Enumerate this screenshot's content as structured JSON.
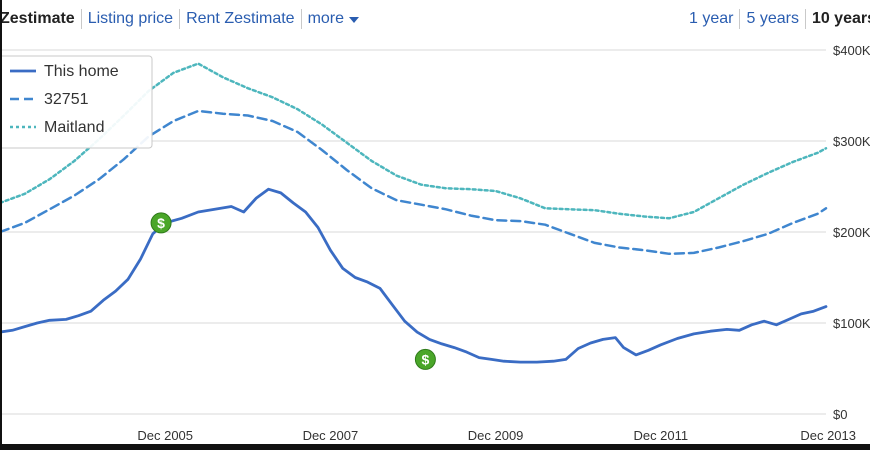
{
  "toolbar": {
    "tabs": [
      "Zestimate",
      "Listing price",
      "Rent Zestimate"
    ],
    "more_label": "more",
    "ranges": [
      "1 year",
      "5 years",
      "10 years"
    ]
  },
  "colors": {
    "link": "#2a5db0",
    "this_home": "#3a6cc4",
    "zip": "#3f86cf",
    "city": "#4db6bd",
    "marker": "#4aa629",
    "grid": "#d9d9d9"
  },
  "chart_data": {
    "type": "line",
    "x_ticks": [
      "Dec 2005",
      "Dec 2007",
      "Dec 2009",
      "Dec 2011",
      "Dec 2013"
    ],
    "y_ticks": [
      "$0",
      "$100K",
      "$200K",
      "$300K",
      "$400K"
    ],
    "ylim": [
      0,
      400000
    ],
    "xlim": [
      2004.0,
      2014.0
    ],
    "grid": true,
    "legend_position": "top-left",
    "series": [
      {
        "name": "This home",
        "style": "solid",
        "points": [
          [
            2004.0,
            90000
          ],
          [
            2004.15,
            92000
          ],
          [
            2004.3,
            96000
          ],
          [
            2004.45,
            100000
          ],
          [
            2004.6,
            103000
          ],
          [
            2004.8,
            104000
          ],
          [
            2004.95,
            108000
          ],
          [
            2005.1,
            113000
          ],
          [
            2005.25,
            125000
          ],
          [
            2005.4,
            135000
          ],
          [
            2005.55,
            148000
          ],
          [
            2005.7,
            170000
          ],
          [
            2005.85,
            198000
          ],
          [
            2006.0,
            210000
          ],
          [
            2006.2,
            215000
          ],
          [
            2006.4,
            222000
          ],
          [
            2006.6,
            225000
          ],
          [
            2006.8,
            228000
          ],
          [
            2006.95,
            222000
          ],
          [
            2007.1,
            237000
          ],
          [
            2007.25,
            247000
          ],
          [
            2007.4,
            243000
          ],
          [
            2007.55,
            232000
          ],
          [
            2007.7,
            222000
          ],
          [
            2007.85,
            205000
          ],
          [
            2008.0,
            180000
          ],
          [
            2008.15,
            160000
          ],
          [
            2008.3,
            150000
          ],
          [
            2008.45,
            145000
          ],
          [
            2008.6,
            138000
          ],
          [
            2008.75,
            120000
          ],
          [
            2008.9,
            102000
          ],
          [
            2009.05,
            90000
          ],
          [
            2009.2,
            82000
          ],
          [
            2009.35,
            77000
          ],
          [
            2009.5,
            73000
          ],
          [
            2009.65,
            68000
          ],
          [
            2009.8,
            62000
          ],
          [
            2009.95,
            60000
          ],
          [
            2010.1,
            58000
          ],
          [
            2010.3,
            57000
          ],
          [
            2010.5,
            57000
          ],
          [
            2010.7,
            58000
          ],
          [
            2010.85,
            60000
          ],
          [
            2011.0,
            72000
          ],
          [
            2011.15,
            78000
          ],
          [
            2011.3,
            82000
          ],
          [
            2011.45,
            84000
          ],
          [
            2011.55,
            73000
          ],
          [
            2011.7,
            65000
          ],
          [
            2011.85,
            70000
          ],
          [
            2012.0,
            76000
          ],
          [
            2012.2,
            83000
          ],
          [
            2012.4,
            88000
          ],
          [
            2012.6,
            91000
          ],
          [
            2012.8,
            93000
          ],
          [
            2012.95,
            92000
          ],
          [
            2013.1,
            98000
          ],
          [
            2013.25,
            102000
          ],
          [
            2013.4,
            98000
          ],
          [
            2013.55,
            104000
          ],
          [
            2013.7,
            110000
          ],
          [
            2013.85,
            113000
          ],
          [
            2014.0,
            118000
          ]
        ]
      },
      {
        "name": "32751",
        "style": "dashed",
        "points": [
          [
            2004.0,
            200000
          ],
          [
            2004.3,
            210000
          ],
          [
            2004.6,
            225000
          ],
          [
            2004.9,
            240000
          ],
          [
            2005.2,
            258000
          ],
          [
            2005.5,
            280000
          ],
          [
            2005.8,
            305000
          ],
          [
            2006.1,
            322000
          ],
          [
            2006.4,
            333000
          ],
          [
            2006.7,
            330000
          ],
          [
            2007.0,
            328000
          ],
          [
            2007.3,
            322000
          ],
          [
            2007.6,
            310000
          ],
          [
            2007.9,
            290000
          ],
          [
            2008.2,
            268000
          ],
          [
            2008.5,
            248000
          ],
          [
            2008.8,
            235000
          ],
          [
            2009.1,
            230000
          ],
          [
            2009.4,
            225000
          ],
          [
            2009.7,
            218000
          ],
          [
            2010.0,
            213000
          ],
          [
            2010.3,
            212000
          ],
          [
            2010.6,
            208000
          ],
          [
            2010.9,
            198000
          ],
          [
            2011.2,
            188000
          ],
          [
            2011.5,
            183000
          ],
          [
            2011.8,
            180000
          ],
          [
            2012.1,
            176000
          ],
          [
            2012.4,
            177000
          ],
          [
            2012.7,
            183000
          ],
          [
            2013.0,
            190000
          ],
          [
            2013.3,
            198000
          ],
          [
            2013.6,
            210000
          ],
          [
            2013.9,
            220000
          ],
          [
            2014.0,
            226000
          ]
        ]
      },
      {
        "name": "Maitland",
        "style": "dotted",
        "points": [
          [
            2004.0,
            232000
          ],
          [
            2004.3,
            242000
          ],
          [
            2004.6,
            258000
          ],
          [
            2004.9,
            278000
          ],
          [
            2005.2,
            302000
          ],
          [
            2005.5,
            328000
          ],
          [
            2005.8,
            355000
          ],
          [
            2006.1,
            375000
          ],
          [
            2006.4,
            385000
          ],
          [
            2006.7,
            370000
          ],
          [
            2007.0,
            358000
          ],
          [
            2007.3,
            348000
          ],
          [
            2007.6,
            335000
          ],
          [
            2007.9,
            318000
          ],
          [
            2008.2,
            298000
          ],
          [
            2008.5,
            278000
          ],
          [
            2008.8,
            262000
          ],
          [
            2009.1,
            252000
          ],
          [
            2009.4,
            248000
          ],
          [
            2009.7,
            247000
          ],
          [
            2010.0,
            245000
          ],
          [
            2010.3,
            237000
          ],
          [
            2010.6,
            226000
          ],
          [
            2010.9,
            225000
          ],
          [
            2011.2,
            224000
          ],
          [
            2011.5,
            220000
          ],
          [
            2011.8,
            217000
          ],
          [
            2012.1,
            215000
          ],
          [
            2012.4,
            222000
          ],
          [
            2012.7,
            237000
          ],
          [
            2013.0,
            252000
          ],
          [
            2013.3,
            265000
          ],
          [
            2013.6,
            277000
          ],
          [
            2013.9,
            287000
          ],
          [
            2014.0,
            292000
          ]
        ]
      }
    ],
    "markers": [
      {
        "name": "listing-marker",
        "label": "$",
        "x": 2005.95,
        "y": 210000
      },
      {
        "name": "listing-marker",
        "label": "$",
        "x": 2009.15,
        "y": 60000
      }
    ]
  }
}
